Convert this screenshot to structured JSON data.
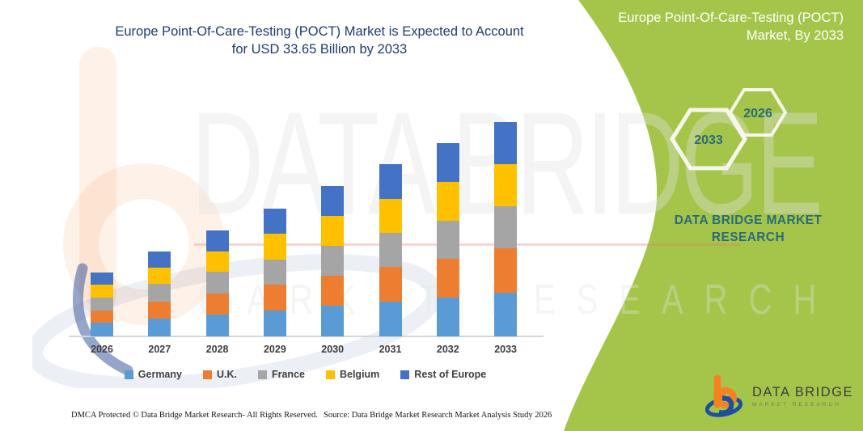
{
  "title": {
    "line1": "Europe Point-Of-Care-Testing (POCT) Market is Expected to Account",
    "line2": "for USD 33.65 Billion by 2033"
  },
  "chart_data": {
    "type": "bar",
    "stacked": true,
    "title": "Europe Point-Of-Care-Testing (POCT) Market is Expected to Account for USD 33.65 Billion by 2033",
    "unit": "USD Billion",
    "categories": [
      "2026",
      "2027",
      "2028",
      "2029",
      "2030",
      "2031",
      "2032",
      "2033"
    ],
    "series": [
      {
        "name": "Germany",
        "color": "#5b9bd5",
        "values": [
          2.1,
          2.8,
          3.4,
          4.1,
          4.8,
          5.5,
          6.1,
          6.9
        ]
      },
      {
        "name": "U.K.",
        "color": "#ed7d31",
        "values": [
          2.0,
          2.7,
          3.3,
          4.0,
          4.7,
          5.4,
          6.1,
          6.9
        ]
      },
      {
        "name": "France",
        "color": "#a5a5a5",
        "values": [
          2.0,
          2.7,
          3.4,
          4.0,
          4.7,
          5.4,
          6.0,
          6.6
        ]
      },
      {
        "name": "Belgium",
        "color": "#ffc000",
        "values": [
          2.0,
          2.6,
          3.3,
          4.0,
          4.7,
          5.3,
          6.0,
          6.6
        ]
      },
      {
        "name": "Rest of Europe",
        "color": "#4472c4",
        "values": [
          1.9,
          2.6,
          3.3,
          4.0,
          4.7,
          5.4,
          6.1,
          6.65
        ]
      }
    ],
    "totals": [
      10.0,
      13.4,
      16.7,
      20.1,
      23.6,
      27.0,
      30.3,
      33.65
    ],
    "xlabel": "",
    "ylabel": "",
    "ylim": [
      0,
      35
    ],
    "grid": false,
    "legend_position": "bottom"
  },
  "panel": {
    "title": "Europe Point-Of-Care-Testing (POCT) Market, By 2033",
    "bg_color": "#a5c54a",
    "text_color": "#2a6b78",
    "hexagons": [
      {
        "label": "2033"
      },
      {
        "label": "2026"
      }
    ],
    "brand_line1": "DATA BRIDGE MARKET",
    "brand_line2": "RESEARCH",
    "logo": {
      "name": "DATA BRIDGE",
      "tagline": "MARKET RESEARCH"
    }
  },
  "watermark": {
    "text_primary": "DATA BRIDGE",
    "text_secondary": "MARKET RESEARCH"
  },
  "footer": {
    "left": "DMCA Protected © Data Bridge Market Research-  All Rights Reserved.",
    "source": "Source: Data Bridge Market Research  Market Analysis Study 2026"
  }
}
